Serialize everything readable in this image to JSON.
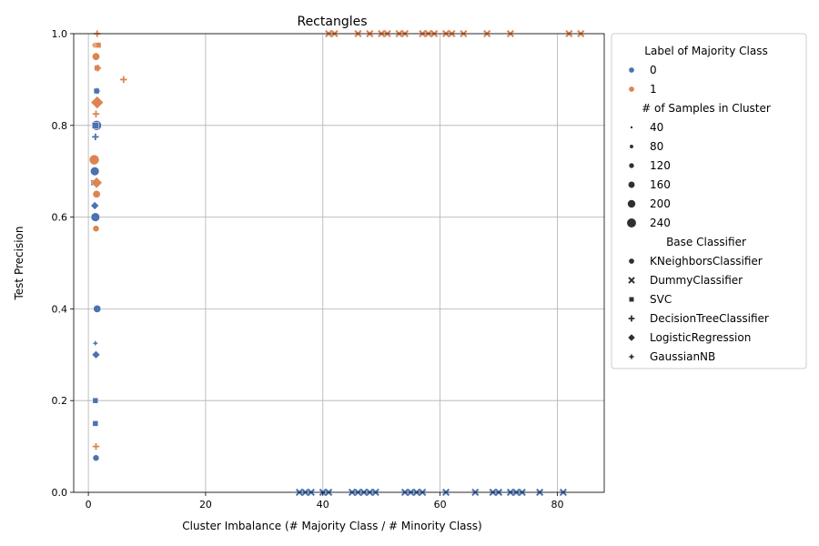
{
  "chart_data": {
    "type": "scatter",
    "title": "Rectangles",
    "xlabel": "Cluster Imbalance (# Majority Class / # Minority Class)",
    "ylabel": "Test Precision",
    "xlim": [
      -2.5,
      88
    ],
    "ylim": [
      0,
      1
    ],
    "xticks": [
      0,
      20,
      40,
      60,
      80
    ],
    "yticks": [
      0.0,
      0.2,
      0.4,
      0.6,
      0.8,
      1.0
    ],
    "grid": true,
    "legend_placement": "outside right, top",
    "colors": {
      "0": "#4c72b0",
      "1": "#dd8452"
    },
    "legend": {
      "hue_title": "Label of Majority Class",
      "hue_levels": [
        "0",
        "1"
      ],
      "size_title": "# of Samples in Cluster",
      "size_levels": [
        "40",
        "80",
        "120",
        "160",
        "200",
        "240"
      ],
      "style_title": "Base Classifier",
      "style_levels": [
        {
          "label": "KNeighborsClassifier",
          "marker": "circle"
        },
        {
          "label": "DummyClassifier",
          "marker": "x"
        },
        {
          "label": "SVC",
          "marker": "square"
        },
        {
          "label": "DecisionTreeClassifier",
          "marker": "plus"
        },
        {
          "label": "LogisticRegression",
          "marker": "diamond"
        },
        {
          "label": "GaussianNB",
          "marker": "star"
        }
      ]
    },
    "points": [
      {
        "x": 1.2,
        "y": 0.975,
        "label": "1",
        "marker": "circle",
        "n": 80
      },
      {
        "x": 1.3,
        "y": 0.95,
        "label": "1",
        "marker": "circle",
        "n": 120
      },
      {
        "x": 1.4,
        "y": 0.8,
        "label": "0",
        "marker": "circle",
        "n": 200
      },
      {
        "x": 1.0,
        "y": 0.725,
        "label": "1",
        "marker": "circle",
        "n": 200
      },
      {
        "x": 1.1,
        "y": 0.7,
        "label": "0",
        "marker": "circle",
        "n": 160
      },
      {
        "x": 1.5,
        "y": 0.675,
        "label": "1",
        "marker": "circle",
        "n": 120
      },
      {
        "x": 1.4,
        "y": 0.65,
        "label": "1",
        "marker": "circle",
        "n": 120
      },
      {
        "x": 1.2,
        "y": 0.6,
        "label": "0",
        "marker": "circle",
        "n": 160
      },
      {
        "x": 1.3,
        "y": 0.575,
        "label": "1",
        "marker": "circle",
        "n": 80
      },
      {
        "x": 1.5,
        "y": 0.4,
        "label": "0",
        "marker": "circle",
        "n": 120
      },
      {
        "x": 1.3,
        "y": 0.075,
        "label": "0",
        "marker": "circle",
        "n": 80
      },
      {
        "x": 1.4,
        "y": 0.975,
        "label": "1",
        "marker": "square",
        "n": 80
      },
      {
        "x": 1.7,
        "y": 0.975,
        "label": "1",
        "marker": "square",
        "n": 80
      },
      {
        "x": 1.5,
        "y": 0.925,
        "label": "1",
        "marker": "square",
        "n": 80
      },
      {
        "x": 1.4,
        "y": 0.875,
        "label": "0",
        "marker": "square",
        "n": 80
      },
      {
        "x": 1.2,
        "y": 0.8,
        "label": "0",
        "marker": "square",
        "n": 120
      },
      {
        "x": 0.9,
        "y": 0.675,
        "label": "0",
        "marker": "square",
        "n": 80
      },
      {
        "x": 1.2,
        "y": 0.2,
        "label": "0",
        "marker": "square",
        "n": 80
      },
      {
        "x": 1.2,
        "y": 0.15,
        "label": "0",
        "marker": "square",
        "n": 80
      },
      {
        "x": 1.5,
        "y": 1.0,
        "label": "1",
        "marker": "plus",
        "n": 80
      },
      {
        "x": 1.6,
        "y": 0.925,
        "label": "1",
        "marker": "plus",
        "n": 80
      },
      {
        "x": 6.0,
        "y": 0.9,
        "label": "1",
        "marker": "plus",
        "n": 80
      },
      {
        "x": 1.3,
        "y": 0.825,
        "label": "1",
        "marker": "plus",
        "n": 80
      },
      {
        "x": 1.2,
        "y": 0.775,
        "label": "0",
        "marker": "plus",
        "n": 80
      },
      {
        "x": 1.7,
        "y": 0.675,
        "label": "1",
        "marker": "plus",
        "n": 80
      },
      {
        "x": 1.3,
        "y": 0.1,
        "label": "1",
        "marker": "plus",
        "n": 80
      },
      {
        "x": 1.5,
        "y": 0.85,
        "label": "1",
        "marker": "diamond",
        "n": 200
      },
      {
        "x": 1.4,
        "y": 0.675,
        "label": "1",
        "marker": "diamond",
        "n": 160
      },
      {
        "x": 1.1,
        "y": 0.625,
        "label": "0",
        "marker": "diamond",
        "n": 80
      },
      {
        "x": 1.3,
        "y": 0.3,
        "label": "0",
        "marker": "diamond",
        "n": 80
      },
      {
        "x": 1.5,
        "y": 0.875,
        "label": "0",
        "marker": "star",
        "n": 80
      },
      {
        "x": 1.1,
        "y": 0.7,
        "label": "0",
        "marker": "star",
        "n": 80
      },
      {
        "x": 1.2,
        "y": 0.325,
        "label": "0",
        "marker": "star",
        "n": 40
      },
      {
        "x": 41,
        "y": 1.0,
        "label": "1",
        "marker": "x",
        "n": 80
      },
      {
        "x": 42,
        "y": 1.0,
        "label": "1",
        "marker": "x",
        "n": 80
      },
      {
        "x": 46,
        "y": 1.0,
        "label": "1",
        "marker": "x",
        "n": 80
      },
      {
        "x": 48,
        "y": 1.0,
        "label": "1",
        "marker": "x",
        "n": 80
      },
      {
        "x": 50,
        "y": 1.0,
        "label": "1",
        "marker": "x",
        "n": 80
      },
      {
        "x": 51,
        "y": 1.0,
        "label": "1",
        "marker": "x",
        "n": 80
      },
      {
        "x": 53,
        "y": 1.0,
        "label": "1",
        "marker": "x",
        "n": 80
      },
      {
        "x": 54,
        "y": 1.0,
        "label": "1",
        "marker": "x",
        "n": 80
      },
      {
        "x": 57,
        "y": 1.0,
        "label": "1",
        "marker": "x",
        "n": 80
      },
      {
        "x": 58,
        "y": 1.0,
        "label": "1",
        "marker": "x",
        "n": 80
      },
      {
        "x": 59,
        "y": 1.0,
        "label": "1",
        "marker": "x",
        "n": 80
      },
      {
        "x": 61,
        "y": 1.0,
        "label": "1",
        "marker": "x",
        "n": 80
      },
      {
        "x": 62,
        "y": 1.0,
        "label": "1",
        "marker": "x",
        "n": 80
      },
      {
        "x": 64,
        "y": 1.0,
        "label": "1",
        "marker": "x",
        "n": 80
      },
      {
        "x": 68,
        "y": 1.0,
        "label": "1",
        "marker": "x",
        "n": 80
      },
      {
        "x": 72,
        "y": 1.0,
        "label": "1",
        "marker": "x",
        "n": 80
      },
      {
        "x": 82,
        "y": 1.0,
        "label": "1",
        "marker": "x",
        "n": 80
      },
      {
        "x": 84,
        "y": 1.0,
        "label": "1",
        "marker": "x",
        "n": 80
      },
      {
        "x": 36,
        "y": 0.0,
        "label": "0",
        "marker": "x",
        "n": 80
      },
      {
        "x": 37,
        "y": 0.0,
        "label": "0",
        "marker": "x",
        "n": 80
      },
      {
        "x": 38,
        "y": 0.0,
        "label": "0",
        "marker": "x",
        "n": 80
      },
      {
        "x": 40,
        "y": 0.0,
        "label": "0",
        "marker": "x",
        "n": 80
      },
      {
        "x": 41,
        "y": 0.0,
        "label": "0",
        "marker": "x",
        "n": 80
      },
      {
        "x": 45,
        "y": 0.0,
        "label": "0",
        "marker": "x",
        "n": 80
      },
      {
        "x": 46,
        "y": 0.0,
        "label": "0",
        "marker": "x",
        "n": 80
      },
      {
        "x": 47,
        "y": 0.0,
        "label": "0",
        "marker": "x",
        "n": 80
      },
      {
        "x": 48,
        "y": 0.0,
        "label": "0",
        "marker": "x",
        "n": 80
      },
      {
        "x": 49,
        "y": 0.0,
        "label": "0",
        "marker": "x",
        "n": 80
      },
      {
        "x": 54,
        "y": 0.0,
        "label": "0",
        "marker": "x",
        "n": 80
      },
      {
        "x": 55,
        "y": 0.0,
        "label": "0",
        "marker": "x",
        "n": 80
      },
      {
        "x": 56,
        "y": 0.0,
        "label": "0",
        "marker": "x",
        "n": 80
      },
      {
        "x": 57,
        "y": 0.0,
        "label": "0",
        "marker": "x",
        "n": 80
      },
      {
        "x": 61,
        "y": 0.0,
        "label": "0",
        "marker": "x",
        "n": 80
      },
      {
        "x": 66,
        "y": 0.0,
        "label": "0",
        "marker": "x",
        "n": 80
      },
      {
        "x": 69,
        "y": 0.0,
        "label": "0",
        "marker": "x",
        "n": 80
      },
      {
        "x": 70,
        "y": 0.0,
        "label": "0",
        "marker": "x",
        "n": 80
      },
      {
        "x": 72,
        "y": 0.0,
        "label": "0",
        "marker": "x",
        "n": 80
      },
      {
        "x": 73,
        "y": 0.0,
        "label": "0",
        "marker": "x",
        "n": 80
      },
      {
        "x": 74,
        "y": 0.0,
        "label": "0",
        "marker": "x",
        "n": 80
      },
      {
        "x": 77,
        "y": 0.0,
        "label": "0",
        "marker": "x",
        "n": 80
      },
      {
        "x": 81,
        "y": 0.0,
        "label": "0",
        "marker": "x",
        "n": 80
      }
    ]
  }
}
